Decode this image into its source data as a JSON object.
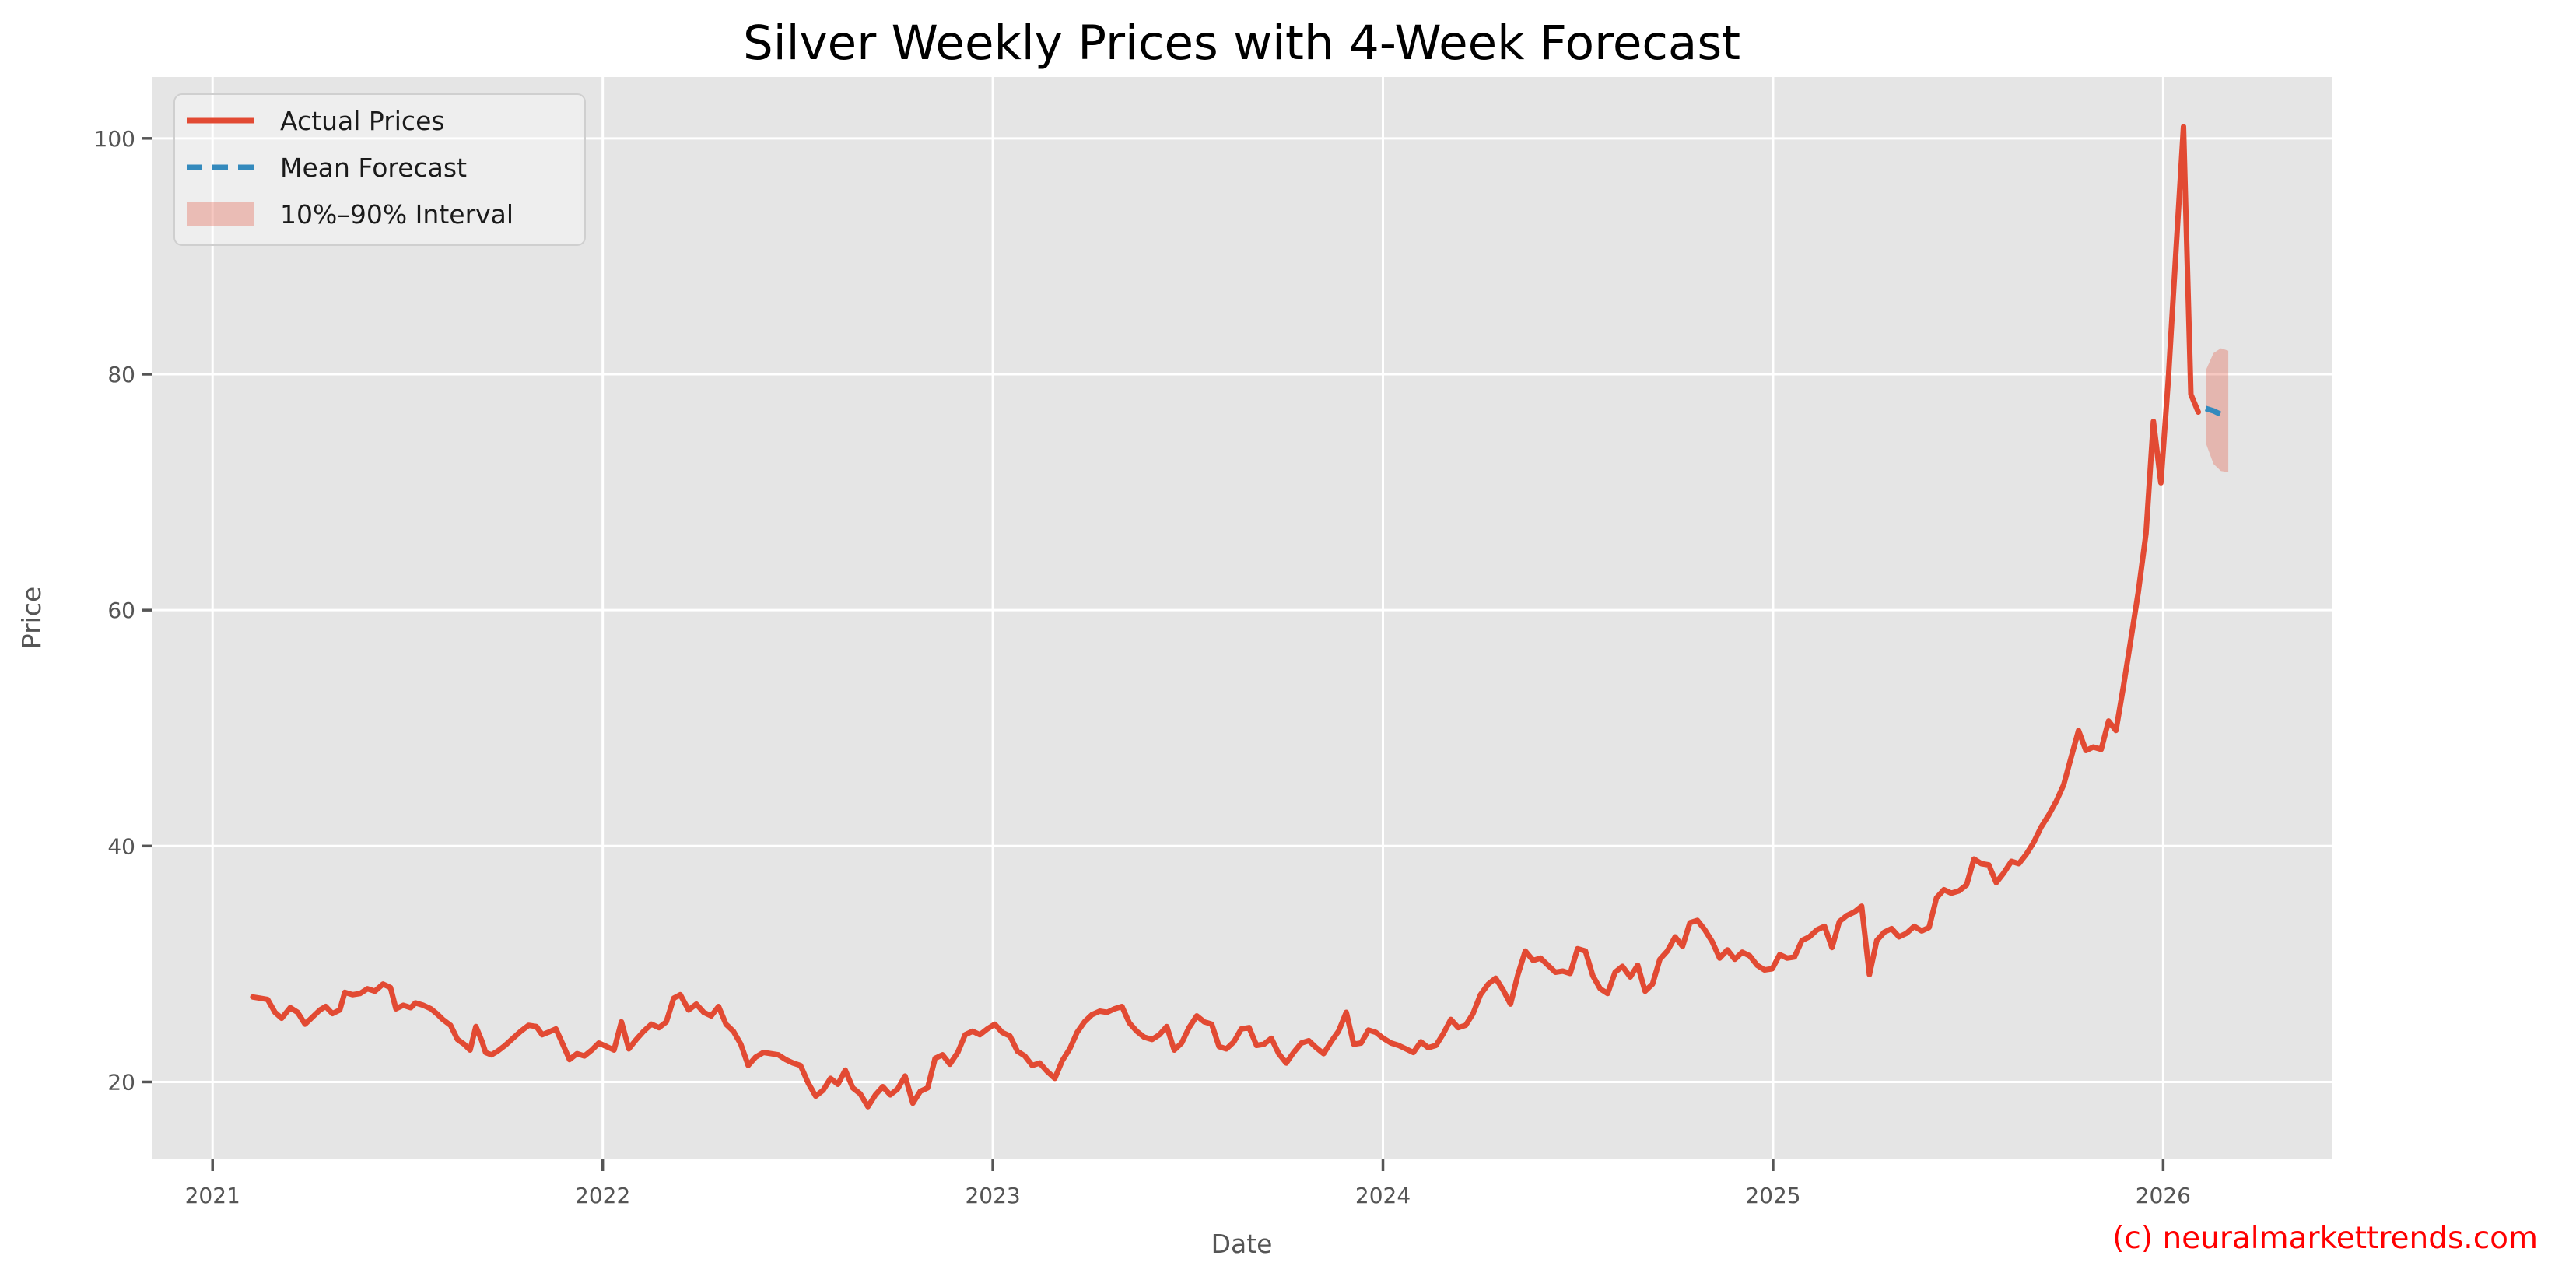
{
  "title": "Silver Weekly Prices with 4-Week Forecast",
  "watermark": "(c) neuralmarkettrends.com",
  "colors": {
    "figure_background": "#ffffff",
    "plot_background": "#e5e5e5",
    "grid": "#ffffff",
    "tick_label": "#555555",
    "axis_label": "#555555",
    "title": "#000000",
    "actual_line": "#E24A33",
    "forecast_line": "#348ABD",
    "interval_fill": "rgba(226,74,51,0.30)",
    "watermark": "#ff0000",
    "legend_background": "rgba(255,255,255,0.35)",
    "legend_border": "#cfcfcf"
  },
  "chart_data": {
    "type": "line",
    "title": "Silver Weekly Prices with 4-Week Forecast",
    "xlabel": "Date",
    "ylabel": "Price",
    "xlim": [
      2020.846,
      2026.432
    ],
    "ylim": [
      13.5,
      105.2
    ],
    "x_ticks": [
      2021,
      2022,
      2023,
      2024,
      2025,
      2026
    ],
    "y_ticks": [
      20,
      40,
      60,
      80,
      100
    ],
    "grid": true,
    "legend_position": "upper left",
    "legend_entries": [
      "Actual Prices",
      "Mean Forecast",
      "10%–90% Interval"
    ],
    "series": [
      {
        "name": "Actual Prices",
        "kind": "line",
        "style": "solid",
        "color": "#E24A33",
        "points": [
          [
            2021.103,
            27.2
          ],
          [
            2021.122,
            27.1
          ],
          [
            2021.141,
            27.0
          ],
          [
            2021.16,
            25.9
          ],
          [
            2021.177,
            25.4
          ],
          [
            2021.199,
            26.3
          ],
          [
            2021.218,
            25.9
          ],
          [
            2021.237,
            24.9
          ],
          [
            2021.256,
            25.5
          ],
          [
            2021.275,
            26.1
          ],
          [
            2021.29,
            26.4
          ],
          [
            2021.307,
            25.8
          ],
          [
            2021.326,
            26.1
          ],
          [
            2021.339,
            27.6
          ],
          [
            2021.359,
            27.4
          ],
          [
            2021.378,
            27.5
          ],
          [
            2021.397,
            27.9
          ],
          [
            2021.416,
            27.7
          ],
          [
            2021.437,
            28.3
          ],
          [
            2021.456,
            28.0
          ],
          [
            2021.47,
            26.2
          ],
          [
            2021.489,
            26.5
          ],
          [
            2021.508,
            26.3
          ],
          [
            2021.52,
            26.7
          ],
          [
            2021.54,
            26.5
          ],
          [
            2021.56,
            26.2
          ],
          [
            2021.578,
            25.7
          ],
          [
            2021.59,
            25.3
          ],
          [
            2021.61,
            24.8
          ],
          [
            2021.628,
            23.6
          ],
          [
            2021.645,
            23.2
          ],
          [
            2021.66,
            22.7
          ],
          [
            2021.675,
            24.7
          ],
          [
            2021.69,
            23.5
          ],
          [
            2021.7,
            22.5
          ],
          [
            2021.715,
            22.3
          ],
          [
            2021.73,
            22.6
          ],
          [
            2021.75,
            23.1
          ],
          [
            2021.77,
            23.7
          ],
          [
            2021.79,
            24.3
          ],
          [
            2021.81,
            24.8
          ],
          [
            2021.83,
            24.7
          ],
          [
            2021.845,
            24.0
          ],
          [
            2021.86,
            24.2
          ],
          [
            2021.88,
            24.5
          ],
          [
            2021.895,
            23.4
          ],
          [
            2021.915,
            21.9
          ],
          [
            2021.934,
            22.4
          ],
          [
            2021.953,
            22.2
          ],
          [
            2021.972,
            22.7
          ],
          [
            2021.99,
            23.3
          ],
          [
            2022.01,
            23.0
          ],
          [
            2022.029,
            22.7
          ],
          [
            2022.048,
            25.1
          ],
          [
            2022.067,
            22.8
          ],
          [
            2022.086,
            23.6
          ],
          [
            2022.105,
            24.3
          ],
          [
            2022.125,
            24.9
          ],
          [
            2022.144,
            24.6
          ],
          [
            2022.163,
            25.1
          ],
          [
            2022.182,
            27.1
          ],
          [
            2022.199,
            27.4
          ],
          [
            2022.22,
            26.1
          ],
          [
            2022.24,
            26.6
          ],
          [
            2022.259,
            25.9
          ],
          [
            2022.278,
            25.6
          ],
          [
            2022.297,
            26.4
          ],
          [
            2022.316,
            24.9
          ],
          [
            2022.335,
            24.3
          ],
          [
            2022.354,
            23.2
          ],
          [
            2022.373,
            21.4
          ],
          [
            2022.392,
            22.1
          ],
          [
            2022.412,
            22.5
          ],
          [
            2022.431,
            22.4
          ],
          [
            2022.45,
            22.3
          ],
          [
            2022.469,
            21.9
          ],
          [
            2022.488,
            21.6
          ],
          [
            2022.507,
            21.4
          ],
          [
            2022.527,
            19.9
          ],
          [
            2022.546,
            18.8
          ],
          [
            2022.565,
            19.3
          ],
          [
            2022.584,
            20.3
          ],
          [
            2022.603,
            19.8
          ],
          [
            2022.622,
            21.0
          ],
          [
            2022.641,
            19.5
          ],
          [
            2022.66,
            19.0
          ],
          [
            2022.68,
            17.9
          ],
          [
            2022.699,
            18.9
          ],
          [
            2022.718,
            19.6
          ],
          [
            2022.737,
            18.9
          ],
          [
            2022.756,
            19.4
          ],
          [
            2022.775,
            20.5
          ],
          [
            2022.795,
            18.2
          ],
          [
            2022.814,
            19.2
          ],
          [
            2022.833,
            19.5
          ],
          [
            2022.852,
            22.0
          ],
          [
            2022.871,
            22.3
          ],
          [
            2022.89,
            21.5
          ],
          [
            2022.91,
            22.5
          ],
          [
            2022.929,
            24.0
          ],
          [
            2022.948,
            24.3
          ],
          [
            2022.967,
            24.0
          ],
          [
            2022.986,
            24.5
          ],
          [
            2023.005,
            24.9
          ],
          [
            2023.024,
            24.2
          ],
          [
            2023.044,
            23.9
          ],
          [
            2023.063,
            22.6
          ],
          [
            2023.082,
            22.2
          ],
          [
            2023.101,
            21.4
          ],
          [
            2023.12,
            21.6
          ],
          [
            2023.139,
            20.9
          ],
          [
            2023.159,
            20.3
          ],
          [
            2023.178,
            21.8
          ],
          [
            2023.197,
            22.8
          ],
          [
            2023.216,
            24.2
          ],
          [
            2023.235,
            25.1
          ],
          [
            2023.254,
            25.7
          ],
          [
            2023.274,
            26.0
          ],
          [
            2023.293,
            25.9
          ],
          [
            2023.312,
            26.2
          ],
          [
            2023.331,
            26.4
          ],
          [
            2023.35,
            25.0
          ],
          [
            2023.369,
            24.3
          ],
          [
            2023.388,
            23.8
          ],
          [
            2023.408,
            23.6
          ],
          [
            2023.427,
            24.0
          ],
          [
            2023.446,
            24.7
          ],
          [
            2023.465,
            22.7
          ],
          [
            2023.484,
            23.3
          ],
          [
            2023.503,
            24.6
          ],
          [
            2023.523,
            25.6
          ],
          [
            2023.542,
            25.1
          ],
          [
            2023.561,
            24.9
          ],
          [
            2023.58,
            23.0
          ],
          [
            2023.599,
            22.8
          ],
          [
            2023.618,
            23.4
          ],
          [
            2023.637,
            24.5
          ],
          [
            2023.657,
            24.6
          ],
          [
            2023.676,
            23.1
          ],
          [
            2023.695,
            23.2
          ],
          [
            2023.714,
            23.7
          ],
          [
            2023.733,
            22.4
          ],
          [
            2023.752,
            21.6
          ],
          [
            2023.771,
            22.5
          ],
          [
            2023.791,
            23.3
          ],
          [
            2023.81,
            23.5
          ],
          [
            2023.829,
            22.9
          ],
          [
            2023.848,
            22.4
          ],
          [
            2023.867,
            23.4
          ],
          [
            2023.886,
            24.3
          ],
          [
            2023.906,
            25.9
          ],
          [
            2023.925,
            23.2
          ],
          [
            2023.944,
            23.3
          ],
          [
            2023.963,
            24.4
          ],
          [
            2023.982,
            24.2
          ],
          [
            2024.001,
            23.7
          ],
          [
            2024.021,
            23.3
          ],
          [
            2024.04,
            23.1
          ],
          [
            2024.059,
            22.8
          ],
          [
            2024.078,
            22.5
          ],
          [
            2024.097,
            23.4
          ],
          [
            2024.116,
            22.9
          ],
          [
            2024.136,
            23.1
          ],
          [
            2024.155,
            24.1
          ],
          [
            2024.174,
            25.3
          ],
          [
            2024.193,
            24.6
          ],
          [
            2024.212,
            24.8
          ],
          [
            2024.231,
            25.8
          ],
          [
            2024.25,
            27.4
          ],
          [
            2024.27,
            28.3
          ],
          [
            2024.289,
            28.8
          ],
          [
            2024.308,
            27.8
          ],
          [
            2024.327,
            26.6
          ],
          [
            2024.346,
            29.1
          ],
          [
            2024.365,
            31.1
          ],
          [
            2024.385,
            30.3
          ],
          [
            2024.404,
            30.5
          ],
          [
            2024.423,
            29.9
          ],
          [
            2024.442,
            29.3
          ],
          [
            2024.461,
            29.4
          ],
          [
            2024.48,
            29.2
          ],
          [
            2024.499,
            31.3
          ],
          [
            2024.519,
            31.1
          ],
          [
            2024.538,
            29.0
          ],
          [
            2024.557,
            27.9
          ],
          [
            2024.576,
            27.5
          ],
          [
            2024.595,
            29.3
          ],
          [
            2024.614,
            29.8
          ],
          [
            2024.634,
            28.9
          ],
          [
            2024.653,
            29.9
          ],
          [
            2024.672,
            27.7
          ],
          [
            2024.691,
            28.3
          ],
          [
            2024.71,
            30.4
          ],
          [
            2024.729,
            31.1
          ],
          [
            2024.749,
            32.3
          ],
          [
            2024.768,
            31.5
          ],
          [
            2024.787,
            33.5
          ],
          [
            2024.806,
            33.7
          ],
          [
            2024.825,
            32.9
          ],
          [
            2024.844,
            31.9
          ],
          [
            2024.863,
            30.5
          ],
          [
            2024.883,
            31.2
          ],
          [
            2024.902,
            30.4
          ],
          [
            2024.921,
            31.0
          ],
          [
            2024.94,
            30.7
          ],
          [
            2024.959,
            29.9
          ],
          [
            2024.978,
            29.5
          ],
          [
            2024.998,
            29.6
          ],
          [
            2025.017,
            30.8
          ],
          [
            2025.036,
            30.5
          ],
          [
            2025.055,
            30.6
          ],
          [
            2025.074,
            32.0
          ],
          [
            2025.093,
            32.3
          ],
          [
            2025.113,
            32.9
          ],
          [
            2025.132,
            33.2
          ],
          [
            2025.151,
            31.4
          ],
          [
            2025.17,
            33.6
          ],
          [
            2025.189,
            34.1
          ],
          [
            2025.208,
            34.4
          ],
          [
            2025.227,
            34.9
          ],
          [
            2025.247,
            29.1
          ],
          [
            2025.266,
            32.0
          ],
          [
            2025.285,
            32.7
          ],
          [
            2025.304,
            33.0
          ],
          [
            2025.323,
            32.3
          ],
          [
            2025.342,
            32.6
          ],
          [
            2025.362,
            33.2
          ],
          [
            2025.381,
            32.8
          ],
          [
            2025.4,
            33.1
          ],
          [
            2025.419,
            35.6
          ],
          [
            2025.438,
            36.3
          ],
          [
            2025.457,
            36.0
          ],
          [
            2025.477,
            36.2
          ],
          [
            2025.496,
            36.7
          ],
          [
            2025.515,
            38.9
          ],
          [
            2025.534,
            38.5
          ],
          [
            2025.553,
            38.4
          ],
          [
            2025.572,
            36.9
          ],
          [
            2025.591,
            37.7
          ],
          [
            2025.611,
            38.7
          ],
          [
            2025.63,
            38.5
          ],
          [
            2025.649,
            39.3
          ],
          [
            2025.668,
            40.3
          ],
          [
            2025.687,
            41.6
          ],
          [
            2025.706,
            42.6
          ],
          [
            2025.726,
            43.8
          ],
          [
            2025.745,
            45.2
          ],
          [
            2025.764,
            47.5
          ],
          [
            2025.783,
            49.8
          ],
          [
            2025.802,
            48.1
          ],
          [
            2025.821,
            48.4
          ],
          [
            2025.841,
            48.2
          ],
          [
            2025.86,
            50.6
          ],
          [
            2025.879,
            49.8
          ],
          [
            2025.898,
            53.5
          ],
          [
            2025.917,
            57.5
          ],
          [
            2025.936,
            61.5
          ],
          [
            2025.956,
            66.5
          ],
          [
            2025.975,
            76.0
          ],
          [
            2025.994,
            70.8
          ],
          [
            2026.013,
            79.5
          ],
          [
            2026.032,
            90.0
          ],
          [
            2026.052,
            101.0
          ],
          [
            2026.071,
            78.3
          ],
          [
            2026.09,
            76.8
          ]
        ]
      },
      {
        "name": "Mean Forecast",
        "kind": "line",
        "style": "dashed",
        "color": "#348ABD",
        "points": [
          [
            2026.109,
            77.1
          ],
          [
            2026.129,
            76.9
          ],
          [
            2026.148,
            76.6
          ],
          [
            2026.167,
            76.3
          ]
        ]
      },
      {
        "name": "10%–90% Interval",
        "kind": "band",
        "color": "#E24A33",
        "opacity": 0.3,
        "points_t_lo_hi": [
          [
            2026.109,
            74.2,
            80.3
          ],
          [
            2026.129,
            72.4,
            81.8
          ],
          [
            2026.148,
            71.8,
            82.2
          ],
          [
            2026.167,
            71.7,
            82.0
          ]
        ]
      }
    ]
  }
}
